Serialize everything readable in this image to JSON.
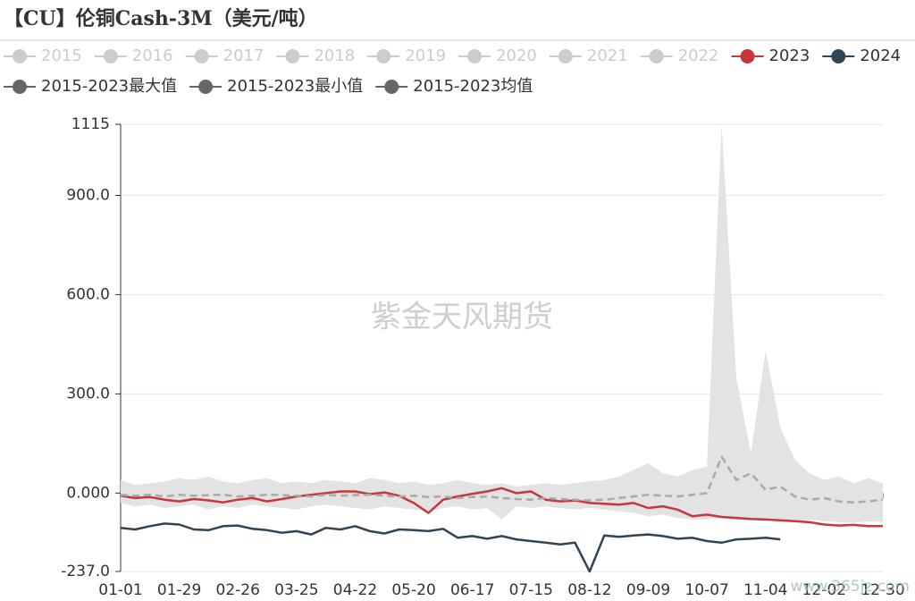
{
  "chart_data": {
    "type": "line",
    "title": "【CU】伦铜Cash-3M（美元/吨）",
    "watermark": "紫金天风期货",
    "site_watermark": "www.365jz.com",
    "x": [
      0,
      7,
      14,
      21,
      28,
      35,
      42,
      49,
      56,
      63,
      70,
      77,
      84,
      91,
      98,
      105,
      112,
      119,
      126,
      133,
      140,
      147,
      154,
      161,
      168,
      175,
      182,
      189,
      196,
      203,
      210,
      217,
      224,
      231,
      238,
      245,
      252,
      259,
      266,
      273,
      280,
      287,
      294,
      301,
      308,
      315,
      322,
      329,
      336,
      343,
      350,
      357,
      364
    ],
    "xlim": [
      0,
      364
    ],
    "xticks": [
      {
        "value": 0,
        "label": "01-01"
      },
      {
        "value": 28,
        "label": "01-29"
      },
      {
        "value": 56,
        "label": "02-26"
      },
      {
        "value": 84,
        "label": "03-25"
      },
      {
        "value": 112,
        "label": "04-22"
      },
      {
        "value": 140,
        "label": "05-20"
      },
      {
        "value": 168,
        "label": "06-17"
      },
      {
        "value": 196,
        "label": "07-15"
      },
      {
        "value": 224,
        "label": "08-12"
      },
      {
        "value": 252,
        "label": "09-09"
      },
      {
        "value": 280,
        "label": "10-07"
      },
      {
        "value": 308,
        "label": "11-04"
      },
      {
        "value": 336,
        "label": "12-02"
      },
      {
        "value": 364,
        "label": "12-30"
      }
    ],
    "ylim": [
      -237,
      1115
    ],
    "yticks": [
      {
        "value": -237,
        "label": "-237.0"
      },
      {
        "value": 0,
        "label": "0.000"
      },
      {
        "value": 300,
        "label": "300.0"
      },
      {
        "value": 600,
        "label": "600.0"
      },
      {
        "value": 900,
        "label": "900.0"
      },
      1115
    ],
    "grid": true,
    "series": [
      {
        "name": "2015",
        "color": "#cccccc",
        "visible": false
      },
      {
        "name": "2016",
        "color": "#cccccc",
        "visible": false
      },
      {
        "name": "2017",
        "color": "#cccccc",
        "visible": false
      },
      {
        "name": "2018",
        "color": "#cccccc",
        "visible": false
      },
      {
        "name": "2019",
        "color": "#cccccc",
        "visible": false
      },
      {
        "name": "2020",
        "color": "#cccccc",
        "visible": false
      },
      {
        "name": "2021",
        "color": "#cccccc",
        "visible": false
      },
      {
        "name": "2022",
        "color": "#cccccc",
        "visible": false
      },
      {
        "name": "2023",
        "color": "#c9363a",
        "values": [
          -8,
          -15,
          -12,
          -20,
          -25,
          -18,
          -22,
          -28,
          -20,
          -15,
          -25,
          -18,
          -10,
          -5,
          0,
          5,
          5,
          -3,
          2,
          -8,
          -30,
          -60,
          -20,
          -10,
          -2,
          5,
          15,
          0,
          5,
          -20,
          -25,
          -22,
          -30,
          -32,
          -35,
          -30,
          -45,
          -40,
          -50,
          -70,
          -65,
          -72,
          -75,
          -78,
          -80,
          -82,
          -85,
          -88,
          -95,
          -98,
          -96,
          -100,
          -100
        ]
      },
      {
        "name": "2024",
        "color": "#2f4554",
        "values": [
          -105,
          -110,
          -100,
          -92,
          -95,
          -110,
          -112,
          -100,
          -98,
          -108,
          -112,
          -120,
          -115,
          -125,
          -105,
          -110,
          -100,
          -115,
          -122,
          -110,
          -112,
          -115,
          -108,
          -135,
          -130,
          -138,
          -130,
          -140,
          -145,
          -150,
          -155,
          -150,
          -237,
          -128,
          -132,
          -128,
          -125,
          -130,
          -138,
          -135,
          -145,
          -150,
          -140,
          -138,
          -135,
          -140,
          null,
          null,
          null,
          null,
          null,
          null,
          null
        ]
      },
      {
        "name": "2015-2023最大值",
        "color": "#666666",
        "band": "upper",
        "band_color": "#e3e3e3",
        "values": [
          40,
          25,
          30,
          35,
          45,
          40,
          50,
          35,
          30,
          40,
          45,
          30,
          35,
          30,
          40,
          35,
          30,
          45,
          40,
          30,
          35,
          25,
          30,
          40,
          30,
          25,
          30,
          20,
          25,
          30,
          25,
          30,
          35,
          40,
          50,
          70,
          90,
          60,
          50,
          70,
          80,
          1115,
          350,
          120,
          430,
          200,
          100,
          60,
          40,
          50,
          30,
          45,
          30
        ]
      },
      {
        "name": "2015-2023最小值",
        "color": "#666666",
        "band": "lower",
        "values": [
          -30,
          -40,
          -35,
          -45,
          -40,
          -35,
          -50,
          -40,
          -45,
          -35,
          -40,
          -45,
          -50,
          -40,
          -35,
          -40,
          -45,
          -50,
          -40,
          -45,
          -50,
          -55,
          -45,
          -40,
          -50,
          -45,
          -80,
          -40,
          -45,
          -40,
          -45,
          -50,
          -45,
          -50,
          -55,
          -60,
          -70,
          -65,
          -75,
          -80,
          -80,
          -75,
          -80,
          -78,
          -80,
          -82,
          -85,
          -80,
          -85,
          -88,
          -90,
          -85,
          -88
        ]
      },
      {
        "name": "2015-2023均值",
        "color": "#666666",
        "line_color": "#aaaaaa",
        "dash": true,
        "values": [
          -5,
          -8,
          -5,
          -10,
          -5,
          -8,
          -6,
          -5,
          -10,
          -8,
          -5,
          -6,
          -8,
          -10,
          -5,
          -8,
          -6,
          -5,
          -8,
          -10,
          -8,
          -12,
          -10,
          -15,
          -12,
          -10,
          -15,
          -18,
          -20,
          -15,
          -18,
          -20,
          -22,
          -20,
          -15,
          -10,
          -5,
          -8,
          -10,
          -5,
          0,
          110,
          40,
          60,
          10,
          20,
          -10,
          -20,
          -15,
          -25,
          -28,
          -25,
          -20
        ]
      }
    ]
  }
}
